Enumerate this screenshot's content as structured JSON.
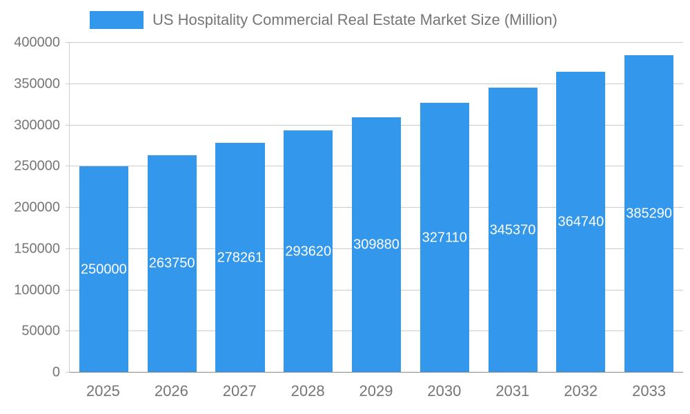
{
  "chart_data": {
    "type": "bar",
    "title": "US Hospitality Commercial Real Estate Market Size (Million)",
    "categories": [
      "2025",
      "2026",
      "2027",
      "2028",
      "2029",
      "2030",
      "2031",
      "2032",
      "2033"
    ],
    "values": [
      250000,
      263750,
      278261,
      293620,
      309880,
      327110,
      345370,
      364740,
      385290
    ],
    "xlabel": "",
    "ylabel": "",
    "ylim": [
      0,
      400000
    ],
    "yticks": [
      0,
      50000,
      100000,
      150000,
      200000,
      250000,
      300000,
      350000,
      400000
    ],
    "grid": true,
    "legend_position": "top",
    "bar_color": "#3398EB",
    "grid_color": "#cccccc",
    "axis_text_color": "#757575",
    "value_label_color": "#ffffff"
  }
}
